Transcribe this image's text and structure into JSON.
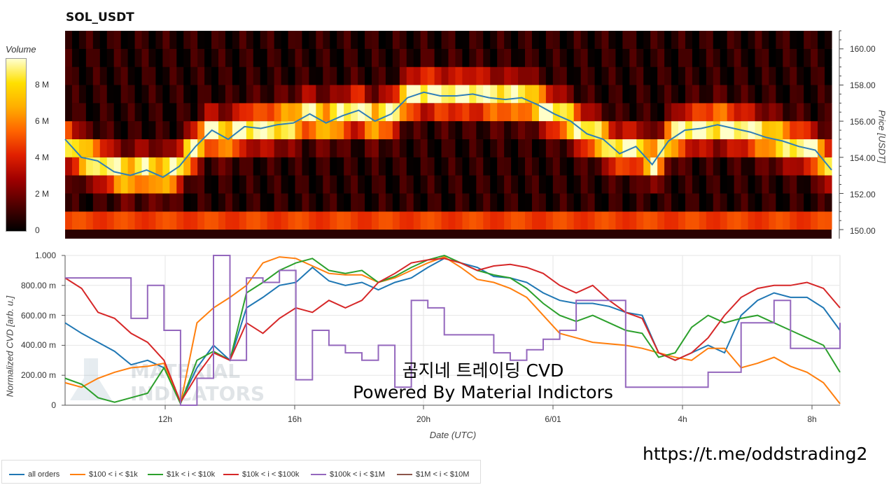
{
  "colors": {
    "all_orders": "#1f77b4",
    "s100_1k": "#ff7f0e",
    "s1k_10k": "#2ca02c",
    "s10k_100k": "#d62728",
    "s100k_1m": "#9467bd",
    "s1m_10m": "#8c564b",
    "price_line": "#2f7fb8"
  },
  "watermark_text": [
    "MATERIAL",
    "INDICATORS"
  ],
  "overlay": {
    "line1": "곰지네 트레이딩 CVD",
    "line2": "Powered By Material Indictors"
  },
  "url": "https://t.me/oddstrading2",
  "chart_data": [
    {
      "type": "heatmap",
      "title": "SOL_USDT",
      "colorbar": {
        "title": "Volume",
        "ticks": [
          "0",
          "2 M",
          "4 M",
          "6 M",
          "8 M"
        ],
        "range": [
          0,
          9500000
        ]
      },
      "y_axis": {
        "label": "Price [USDT]",
        "ticks": [
          "150.00",
          "152.00",
          "154.00",
          "156.00",
          "158.00",
          "160.00"
        ],
        "range": [
          149.5,
          161
        ]
      },
      "price_bins": [
        150,
        151,
        152,
        153,
        154,
        155,
        156,
        157,
        158,
        159,
        160
      ],
      "price_series": {
        "x_hours": [
          0,
          0.5,
          1,
          1.5,
          2,
          2.5,
          3,
          3.5,
          4,
          4.5,
          5,
          5.5,
          6,
          6.5,
          7,
          7.5,
          8,
          8.5,
          9,
          9.5,
          10,
          10.5,
          11,
          11.5,
          12,
          12.5,
          13,
          13.5,
          14,
          14.5,
          15,
          15.5,
          16,
          16.5,
          17,
          17.5,
          18,
          18.5,
          19,
          19.5,
          20,
          20.5,
          21,
          21.5,
          22,
          22.5,
          23,
          23.5
        ],
        "price": [
          155.0,
          154.0,
          153.8,
          153.2,
          153.0,
          153.3,
          152.9,
          153.5,
          154.6,
          155.5,
          155.0,
          155.7,
          155.6,
          155.8,
          155.9,
          156.4,
          155.9,
          156.3,
          156.6,
          156.0,
          156.4,
          157.3,
          157.6,
          157.4,
          157.4,
          157.5,
          157.3,
          157.2,
          157.3,
          156.9,
          156.4,
          156.0,
          155.3,
          155.0,
          154.2,
          154.6,
          153.6,
          154.9,
          155.5,
          155.6,
          155.8,
          155.6,
          155.4,
          155.1,
          154.9,
          154.6,
          154.4,
          153.3
        ]
      }
    },
    {
      "type": "line",
      "xlabel": "Date (UTC)",
      "ylabel": "Normalized CVD [arb. u.]",
      "x_ticks": [
        "12h",
        "16h",
        "20h",
        "6/01",
        "4h",
        "8h"
      ],
      "y_ticks": [
        "0",
        "200.00 m",
        "400.00 m",
        "600.00 m",
        "800.00 m",
        "1.000"
      ],
      "ylim": [
        0,
        1
      ],
      "x_hours": [
        0,
        0.5,
        1,
        1.5,
        2,
        2.5,
        3,
        3.5,
        4,
        4.5,
        5,
        5.5,
        6,
        6.5,
        7,
        7.5,
        8,
        8.5,
        9,
        9.5,
        10,
        10.5,
        11,
        11.5,
        12,
        12.5,
        13,
        13.5,
        14,
        14.5,
        15,
        15.5,
        16,
        16.5,
        17,
        17.5,
        18,
        18.5,
        19,
        19.5,
        20,
        20.5,
        21,
        21.5,
        22,
        22.5,
        23,
        23.5
      ],
      "series": [
        {
          "name": "all orders",
          "values": [
            0.55,
            0.48,
            0.42,
            0.36,
            0.27,
            0.3,
            0.25,
            0.02,
            0.25,
            0.4,
            0.3,
            0.65,
            0.72,
            0.8,
            0.82,
            0.92,
            0.83,
            0.8,
            0.82,
            0.77,
            0.82,
            0.85,
            0.92,
            0.98,
            0.95,
            0.92,
            0.86,
            0.85,
            0.82,
            0.75,
            0.7,
            0.68,
            0.68,
            0.66,
            0.62,
            0.6,
            0.35,
            0.3,
            0.35,
            0.4,
            0.35,
            0.6,
            0.7,
            0.75,
            0.72,
            0.72,
            0.65,
            0.5
          ]
        },
        {
          "name": "$100 < i < $1k",
          "values": [
            0.15,
            0.12,
            0.18,
            0.22,
            0.25,
            0.26,
            0.28,
            0.01,
            0.55,
            0.65,
            0.72,
            0.8,
            0.95,
            0.99,
            0.98,
            0.93,
            0.88,
            0.87,
            0.87,
            0.82,
            0.85,
            0.9,
            0.95,
            0.99,
            0.92,
            0.84,
            0.82,
            0.78,
            0.72,
            0.6,
            0.48,
            0.45,
            0.42,
            0.41,
            0.4,
            0.38,
            0.35,
            0.32,
            0.3,
            0.38,
            0.38,
            0.25,
            0.28,
            0.32,
            0.26,
            0.22,
            0.15,
            0.01
          ]
        },
        {
          "name": "$1k < i < $10k",
          "values": [
            0.18,
            0.14,
            0.05,
            0.02,
            0.05,
            0.08,
            0.25,
            0.01,
            0.3,
            0.36,
            0.3,
            0.75,
            0.82,
            0.9,
            0.95,
            0.98,
            0.9,
            0.88,
            0.9,
            0.82,
            0.86,
            0.92,
            0.97,
            1.0,
            0.95,
            0.9,
            0.87,
            0.85,
            0.78,
            0.68,
            0.6,
            0.56,
            0.6,
            0.55,
            0.5,
            0.48,
            0.32,
            0.35,
            0.52,
            0.6,
            0.55,
            0.58,
            0.6,
            0.55,
            0.5,
            0.45,
            0.4,
            0.22
          ]
        },
        {
          "name": "$10k < i < $100k",
          "values": [
            0.85,
            0.78,
            0.62,
            0.58,
            0.48,
            0.42,
            0.3,
            0.02,
            0.2,
            0.35,
            0.3,
            0.55,
            0.48,
            0.58,
            0.65,
            0.62,
            0.7,
            0.65,
            0.7,
            0.82,
            0.88,
            0.95,
            0.97,
            0.98,
            0.95,
            0.9,
            0.93,
            0.94,
            0.92,
            0.88,
            0.8,
            0.75,
            0.8,
            0.7,
            0.62,
            0.58,
            0.35,
            0.3,
            0.35,
            0.45,
            0.6,
            0.72,
            0.78,
            0.8,
            0.8,
            0.82,
            0.78,
            0.65
          ]
        },
        {
          "name": "$100k < i < $1M",
          "values": [
            0.85,
            0.85,
            0.85,
            0.85,
            0.58,
            0.8,
            0.5,
            0.0,
            0.18,
            1.0,
            0.3,
            0.85,
            0.82,
            0.9,
            0.17,
            0.5,
            0.4,
            0.35,
            0.3,
            0.4,
            0.12,
            0.7,
            0.65,
            0.47,
            0.47,
            0.47,
            0.35,
            0.3,
            0.37,
            0.44,
            0.5,
            0.7,
            0.7,
            0.7,
            0.12,
            0.12,
            0.12,
            0.12,
            0.12,
            0.22,
            0.22,
            0.55,
            0.55,
            0.7,
            0.38,
            0.38,
            0.38,
            0.55
          ]
        },
        {
          "name": "$1M < i < $10M",
          "values": []
        }
      ]
    }
  ]
}
